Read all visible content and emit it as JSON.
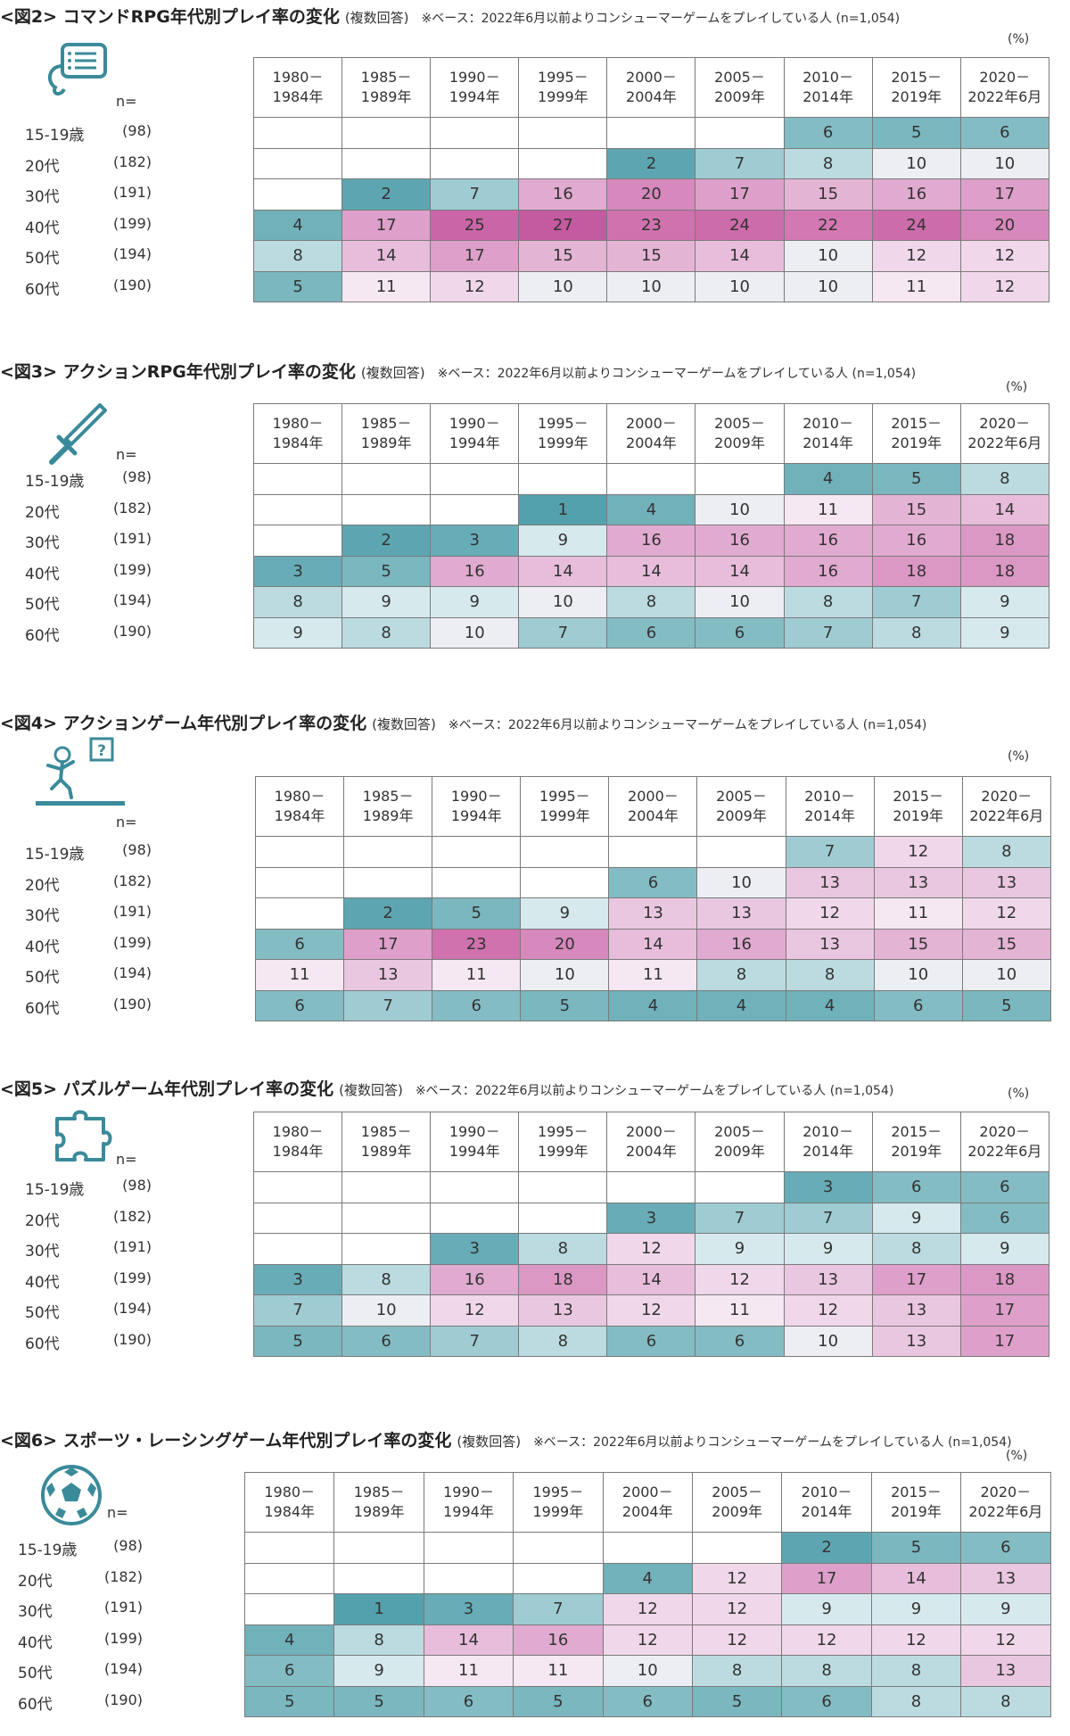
{
  "unit_label": "(%)",
  "header": {
    "n_label": "n=",
    "periods": [
      [
        "1980－",
        "1984年"
      ],
      [
        "1985－",
        "1989年"
      ],
      [
        "1990－",
        "1994年"
      ],
      [
        "1995－",
        "1999年"
      ],
      [
        "2000－",
        "2004年"
      ],
      [
        "2005－",
        "2009年"
      ],
      [
        "2010－",
        "2014年"
      ],
      [
        "2015－",
        "2019年"
      ],
      [
        "2020－",
        "2022年6月"
      ]
    ],
    "ages": [
      "15-19歳",
      "20代",
      "30代",
      "40代",
      "50代",
      "60代"
    ],
    "ns": [
      "(98)",
      "(182)",
      "(191)",
      "(199)",
      "(194)",
      "(190)"
    ]
  },
  "chart_data": [
    {
      "type": "table",
      "icon": "speech-bubble-list-icon",
      "title": "<図2> コマンドRPG年代別プレイ率の変化",
      "subtitle": "(複数回答)",
      "note": "※ベース：2022年6月以前よりコンシューマーゲームをプレイしている人 (n=1,054)",
      "values": [
        [
          null,
          null,
          null,
          null,
          null,
          null,
          6,
          5,
          6
        ],
        [
          null,
          null,
          null,
          null,
          2,
          7,
          8,
          10,
          10
        ],
        [
          null,
          2,
          7,
          16,
          20,
          17,
          15,
          16,
          17
        ],
        [
          4,
          17,
          25,
          27,
          23,
          24,
          22,
          24,
          20
        ],
        [
          8,
          14,
          17,
          15,
          15,
          14,
          10,
          12,
          12
        ],
        [
          5,
          11,
          12,
          10,
          10,
          10,
          10,
          11,
          12
        ]
      ]
    },
    {
      "type": "table",
      "icon": "sword-icon",
      "title": "<図3> アクションRPG年代別プレイ率の変化",
      "subtitle": "(複数回答)",
      "note": "※ベース：2022年6月以前よりコンシューマーゲームをプレイしている人 (n=1,054)",
      "values": [
        [
          null,
          null,
          null,
          null,
          null,
          null,
          4,
          5,
          8
        ],
        [
          null,
          null,
          null,
          1,
          4,
          10,
          11,
          15,
          14
        ],
        [
          null,
          2,
          3,
          9,
          16,
          16,
          16,
          16,
          18
        ],
        [
          3,
          5,
          16,
          14,
          14,
          14,
          16,
          18,
          18
        ],
        [
          8,
          9,
          9,
          10,
          8,
          10,
          8,
          7,
          9
        ],
        [
          9,
          8,
          10,
          7,
          6,
          6,
          7,
          8,
          9
        ]
      ]
    },
    {
      "type": "table",
      "icon": "running-figure-icon",
      "title": "<図4> アクションゲーム年代別プレイ率の変化",
      "subtitle": "(複数回答)",
      "note": "※ベース：2022年6月以前よりコンシューマーゲームをプレイしている人 (n=1,054)",
      "values": [
        [
          null,
          null,
          null,
          null,
          null,
          null,
          7,
          12,
          8
        ],
        [
          null,
          null,
          null,
          null,
          6,
          10,
          13,
          13,
          13
        ],
        [
          null,
          2,
          5,
          9,
          13,
          13,
          12,
          11,
          12
        ],
        [
          6,
          17,
          23,
          20,
          14,
          16,
          13,
          15,
          15
        ],
        [
          11,
          13,
          11,
          10,
          11,
          8,
          8,
          10,
          10
        ],
        [
          6,
          7,
          6,
          5,
          4,
          4,
          4,
          6,
          5
        ]
      ]
    },
    {
      "type": "table",
      "icon": "puzzle-piece-icon",
      "title": "<図5> パズルゲーム年代別プレイ率の変化",
      "subtitle": "(複数回答)",
      "note": "※ベース：2022年6月以前よりコンシューマーゲームをプレイしている人 (n=1,054)",
      "values": [
        [
          null,
          null,
          null,
          null,
          null,
          null,
          3,
          6,
          6
        ],
        [
          null,
          null,
          null,
          null,
          3,
          7,
          7,
          9,
          6
        ],
        [
          null,
          null,
          3,
          8,
          12,
          9,
          9,
          8,
          9
        ],
        [
          3,
          8,
          16,
          18,
          14,
          12,
          13,
          17,
          18
        ],
        [
          7,
          10,
          12,
          13,
          12,
          11,
          12,
          13,
          17
        ],
        [
          5,
          6,
          7,
          8,
          6,
          6,
          10,
          13,
          17
        ]
      ]
    },
    {
      "type": "table",
      "icon": "soccer-ball-icon",
      "title": "<図6> スポーツ・レーシングゲーム年代別プレイ率の変化",
      "subtitle": "(複数回答)",
      "note": "※ベース：2022年6月以前よりコンシューマーゲームをプレイしている人 (n=1,054)",
      "values": [
        [
          null,
          null,
          null,
          null,
          null,
          null,
          2,
          5,
          6
        ],
        [
          null,
          null,
          null,
          null,
          4,
          12,
          17,
          14,
          13
        ],
        [
          null,
          1,
          3,
          7,
          12,
          12,
          9,
          9,
          9
        ],
        [
          4,
          8,
          14,
          16,
          12,
          12,
          12,
          12,
          12
        ],
        [
          6,
          9,
          11,
          11,
          10,
          8,
          8,
          8,
          13
        ],
        [
          5,
          5,
          6,
          5,
          6,
          5,
          6,
          8,
          8
        ]
      ]
    }
  ]
}
